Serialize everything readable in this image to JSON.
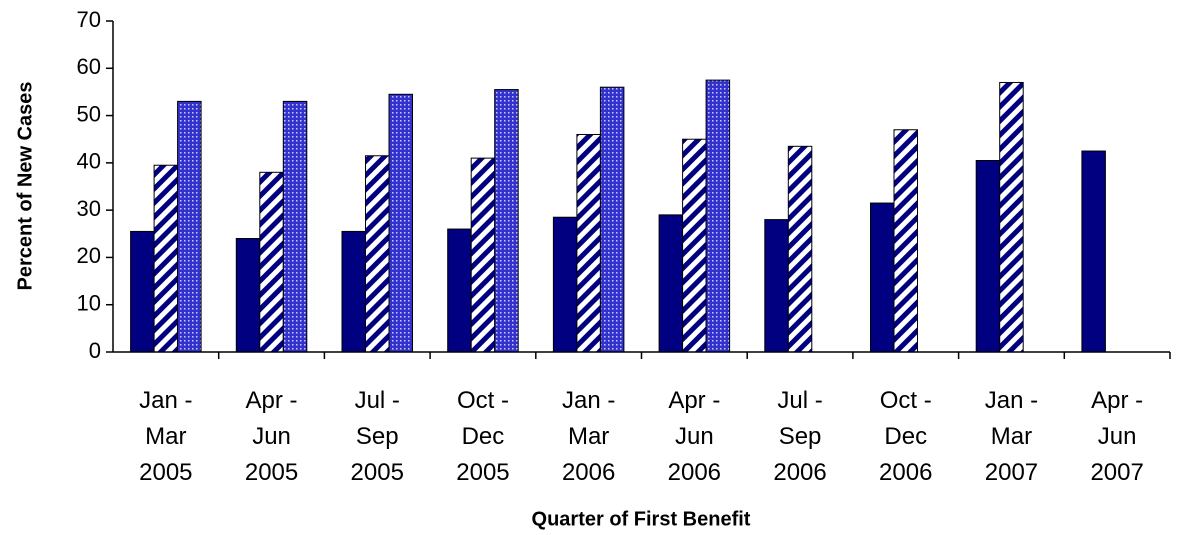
{
  "chart_data": {
    "type": "bar",
    "x_label": "Quarter of First Benefit",
    "y_label": "Percent of New Cases",
    "categories": [
      [
        "Jan -",
        "Mar",
        "2005"
      ],
      [
        "Apr -",
        "Jun",
        "2005"
      ],
      [
        "Jul -",
        "Sep",
        "2005"
      ],
      [
        "Oct -",
        "Dec",
        "2005"
      ],
      [
        "Jan -",
        "Mar",
        "2006"
      ],
      [
        "Apr -",
        "Jun",
        "2006"
      ],
      [
        "Jul -",
        "Sep",
        "2006"
      ],
      [
        "Oct -",
        "Dec",
        "2006"
      ],
      [
        "Jan -",
        "Mar",
        "2007"
      ],
      [
        "Apr -",
        "Jun",
        "2007"
      ]
    ],
    "series": [
      {
        "color": "#000080",
        "pattern": "solid",
        "values": [
          25.5,
          24,
          25.5,
          26,
          28.5,
          29,
          28,
          31.5,
          40.5,
          42.5
        ]
      },
      {
        "color": "#000080",
        "pattern": "diagonal-stripes",
        "values": [
          39.5,
          38,
          41.5,
          41,
          46,
          45,
          43.5,
          47,
          57,
          null
        ]
      },
      {
        "color": "#3333cc",
        "pattern": "dots",
        "values": [
          53,
          53,
          54.5,
          55.5,
          56,
          57.5,
          null,
          null,
          null,
          null
        ]
      }
    ],
    "ylim": [
      0,
      70
    ],
    "yticks": [
      0,
      10,
      20,
      30,
      40,
      50,
      60,
      70
    ],
    "grid": false
  }
}
